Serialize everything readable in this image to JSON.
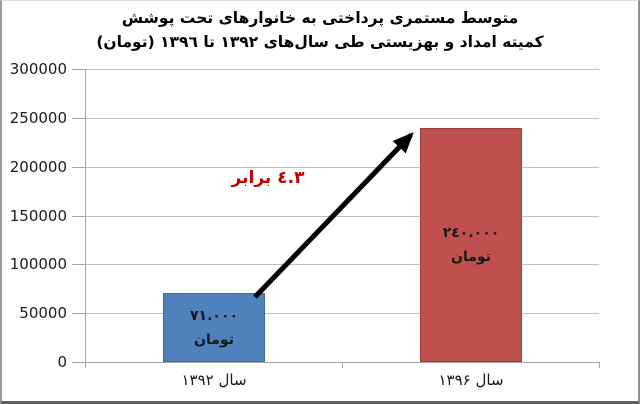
{
  "chart_data": {
    "type": "bar",
    "title": "متوسط مستمری پرداختی به خانوارهای تحت پوشش کمیته امداد و بهزیستی طی سال‌های ۱۳۹۲ تا ۱۳۹٦ (تومان)",
    "title_lines": [
      "متوسط مستمری پرداختی به خانوارهای تحت پوشش",
      "کمیته امداد و بهزیستی طی سال‌های ۱۳۹۲ تا ۱۳۹٦ (تومان)"
    ],
    "categories": [
      "سال ۱۳۹۲",
      "سال ۱۳۹۶"
    ],
    "values": [
      71000,
      240000
    ],
    "bar_labels": [
      [
        "۷۱.۰۰۰",
        "تومان"
      ],
      [
        "۲٤۰.۰۰۰",
        "تومان"
      ]
    ],
    "bar_colors": [
      "#4F81BD",
      "#C0504D"
    ],
    "bar_label_color": "#171717",
    "annotation": "۳.٤ برابر",
    "annotation_color": "#C00000",
    "arrow_color": "#000000",
    "xlabel": "",
    "ylabel": "",
    "ylim": [
      0,
      300000
    ],
    "ytick_step": 50000,
    "ytick_labels": [
      "0",
      "50000",
      "100000",
      "150000",
      "200000",
      "250000",
      "300000"
    ],
    "grid": true,
    "gridline_color": "#BFBFBF",
    "axis_color": "#A6A6A6",
    "legend": false
  }
}
